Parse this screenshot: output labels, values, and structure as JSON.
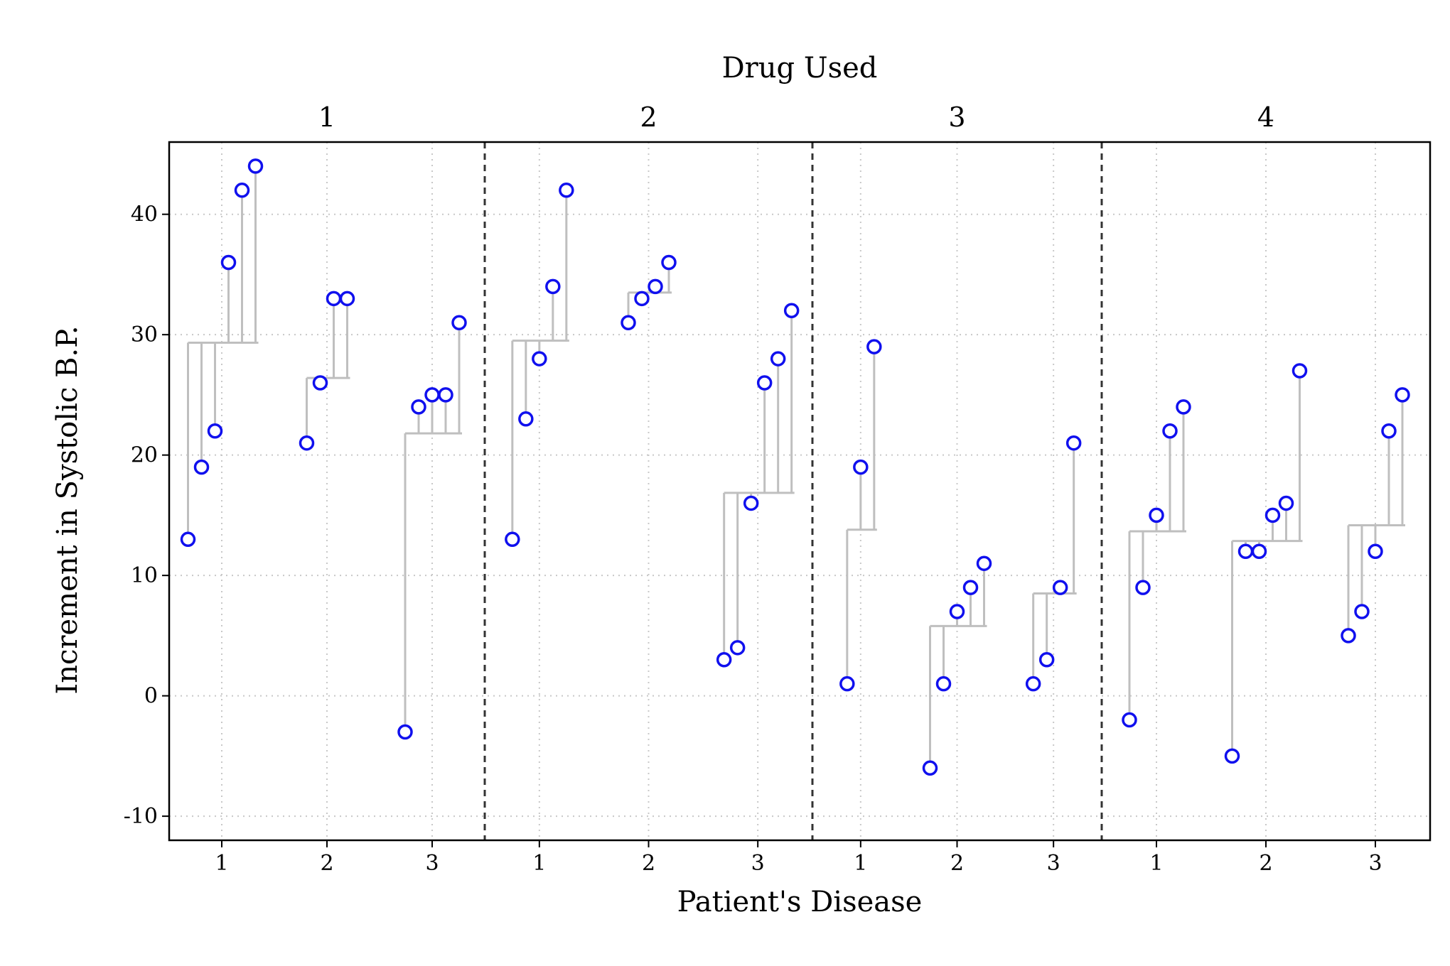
{
  "chart_data": {
    "type": "scatter",
    "title": "Drug Used",
    "xlabel": "Patient's Disease",
    "ylabel": "Increment in Systolic B.P.",
    "ylim": [
      -12,
      46
    ],
    "yticks": [
      "-10",
      "0",
      "10",
      "20",
      "30",
      "40"
    ],
    "grid": true,
    "colors": {
      "points": "#1010ee",
      "stems": "#bfbfbf",
      "separator": "#333333",
      "grid": "#c8c8c8"
    },
    "panels": [
      {
        "label": "1",
        "groups": [
          {
            "label": "1",
            "mean": 29.33,
            "values": [
              13,
              19,
              22,
              36,
              42,
              44
            ]
          },
          {
            "label": "2",
            "mean": 26.4,
            "values": [
              21,
              26,
              33,
              33
            ]
          },
          {
            "label": "3",
            "mean": 21.8,
            "values": [
              -3,
              24,
              25,
              25,
              31
            ]
          }
        ]
      },
      {
        "label": "2",
        "groups": [
          {
            "label": "1",
            "mean": 29.5,
            "values": [
              13,
              23,
              28,
              34,
              42
            ]
          },
          {
            "label": "2",
            "mean": 33.5,
            "values": [
              31,
              33,
              34,
              36
            ]
          },
          {
            "label": "3",
            "mean": 16.86,
            "values": [
              3,
              4,
              16,
              26,
              28,
              32
            ]
          }
        ]
      },
      {
        "label": "3",
        "groups": [
          {
            "label": "1",
            "mean": 13.8,
            "values": [
              1,
              19,
              29
            ]
          },
          {
            "label": "2",
            "mean": 5.8,
            "values": [
              -6,
              1,
              7,
              9,
              11
            ]
          },
          {
            "label": "3",
            "mean": 8.5,
            "values": [
              1,
              3,
              9,
              21
            ]
          }
        ]
      },
      {
        "label": "4",
        "groups": [
          {
            "label": "1",
            "mean": 13.67,
            "values": [
              -2,
              9,
              15,
              22,
              24
            ]
          },
          {
            "label": "2",
            "mean": 12.86,
            "values": [
              -5,
              12,
              12,
              15,
              16,
              27
            ]
          },
          {
            "label": "3",
            "mean": 14.17,
            "values": [
              5,
              7,
              12,
              22,
              25
            ]
          }
        ]
      }
    ]
  }
}
